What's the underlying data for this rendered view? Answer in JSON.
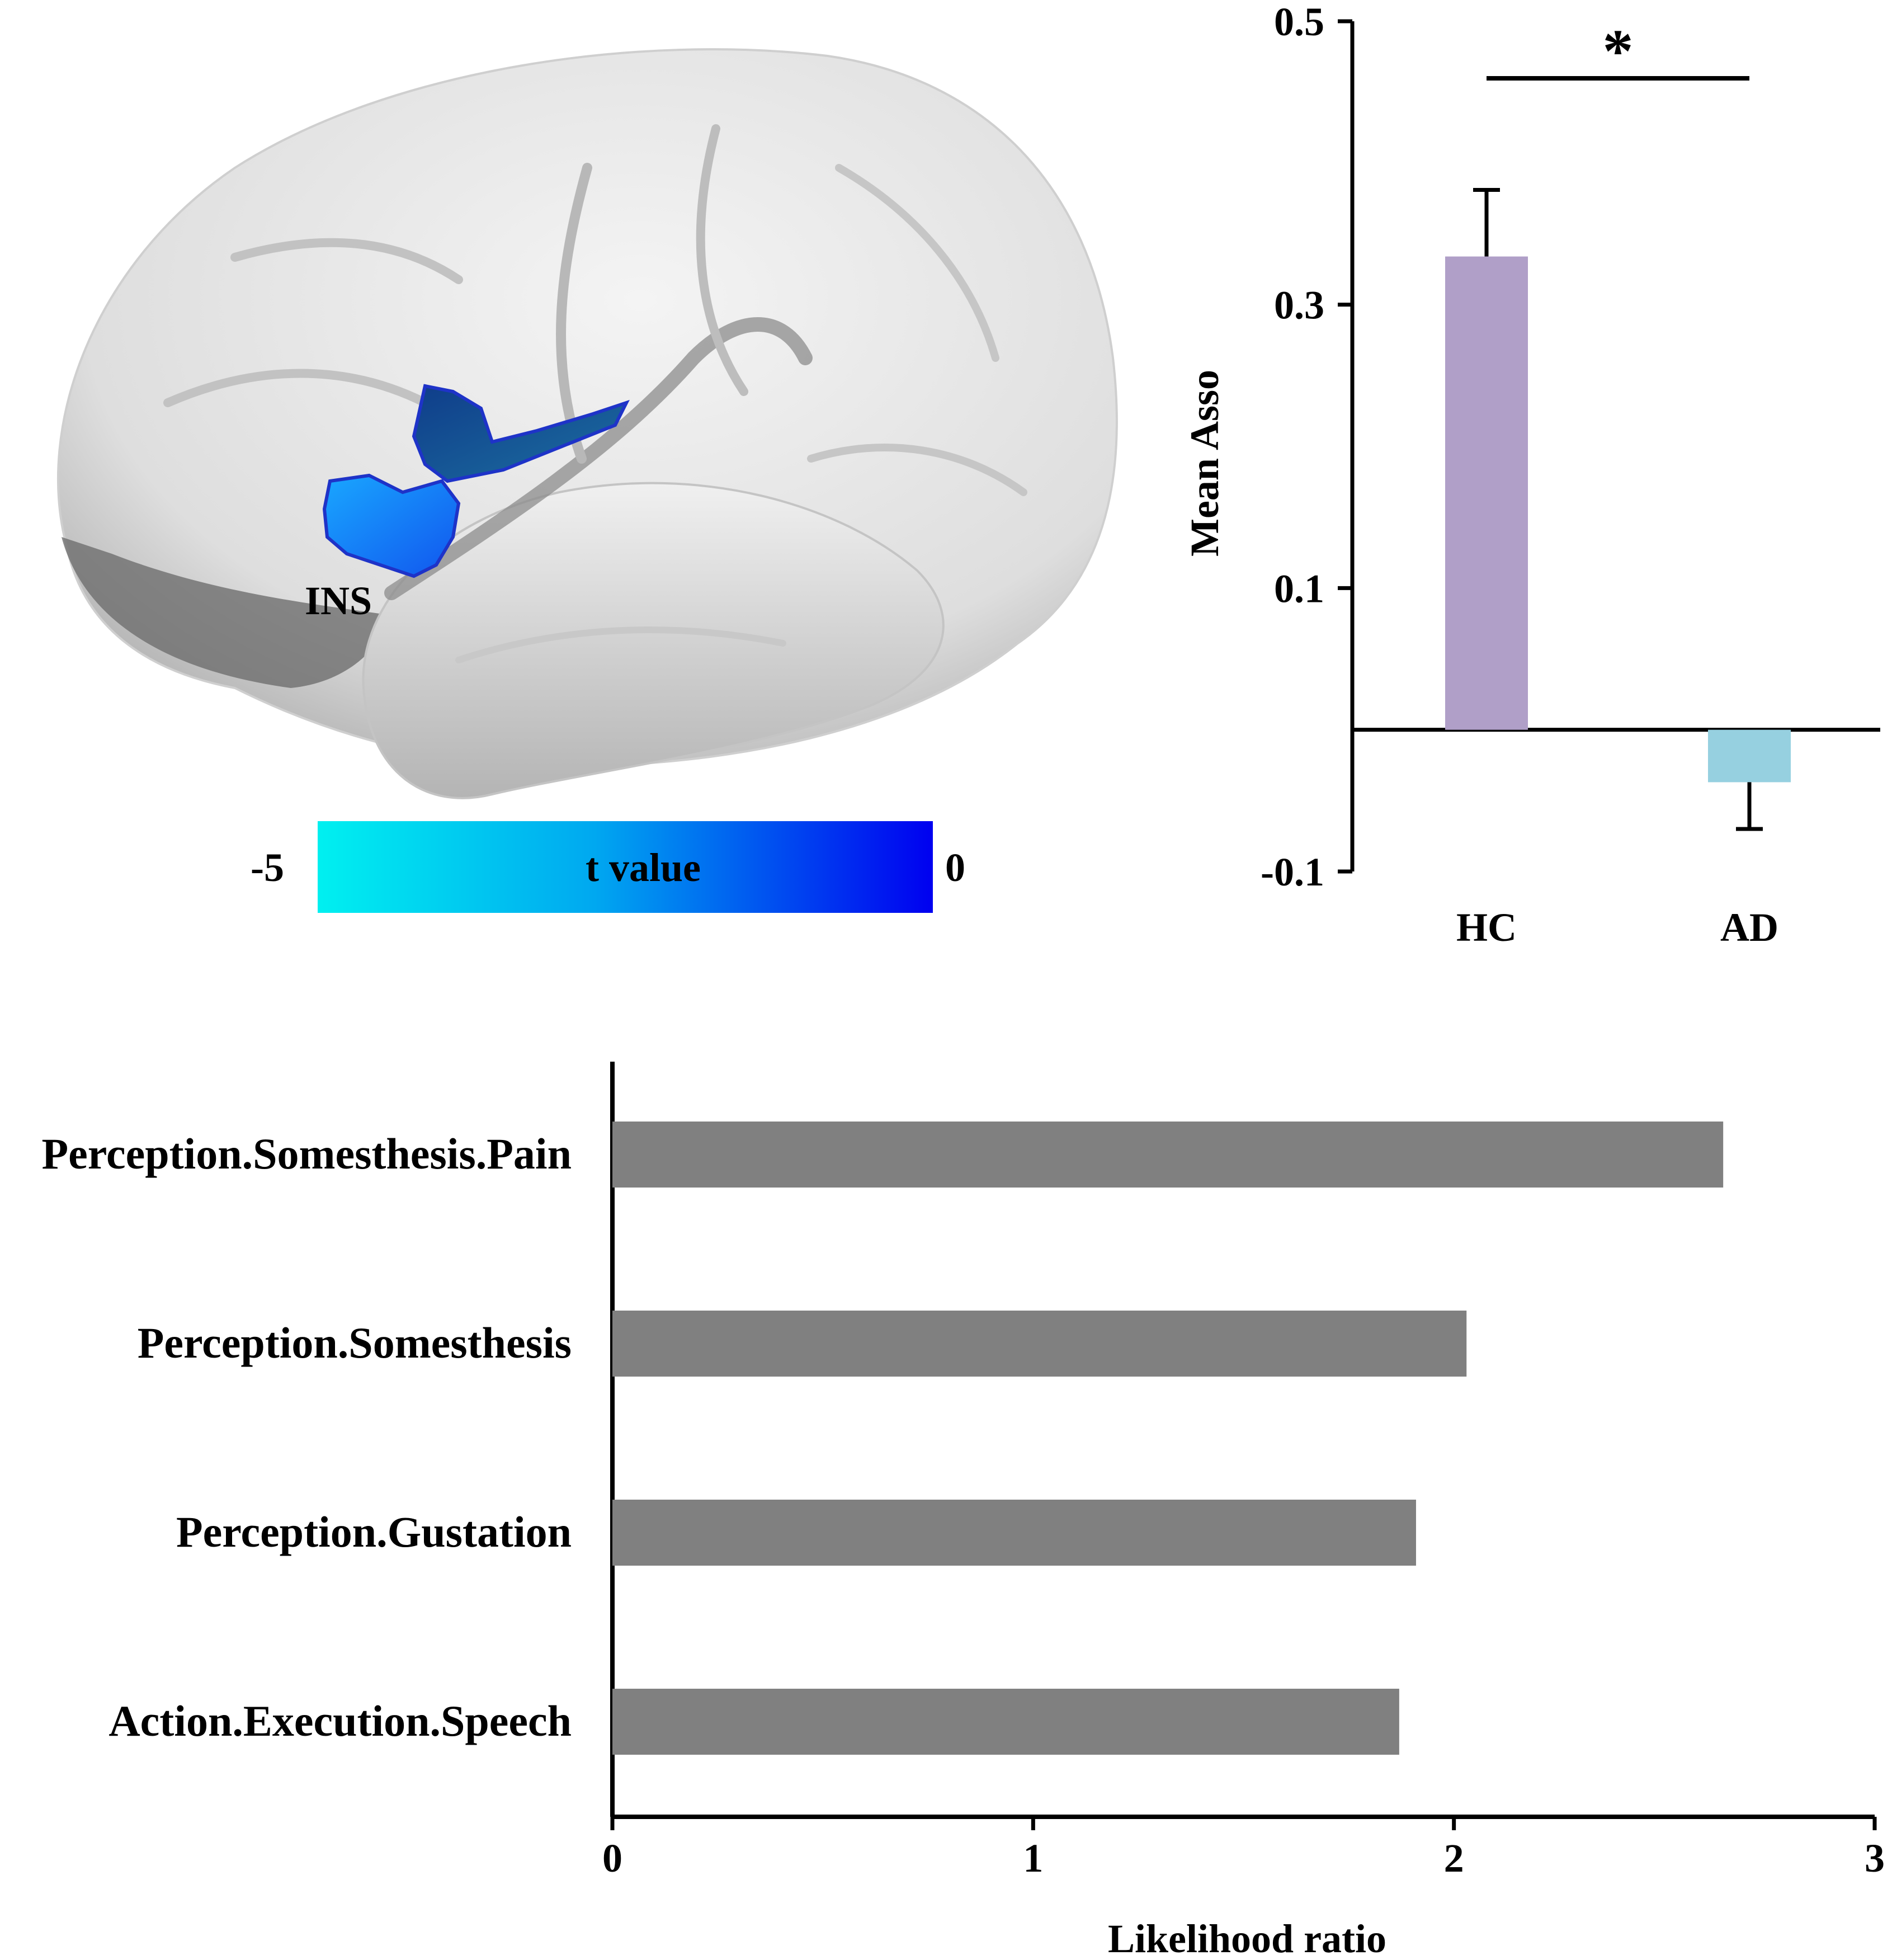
{
  "brain_panel": {
    "region_label": "INS",
    "colorbar": {
      "min_label": "-5",
      "max_label": "0",
      "title": "t value",
      "color_start": "#00f0f0",
      "color_mid": "#00a8f0",
      "color_end": "#0000f0"
    },
    "brain_color": "#e6e6e6",
    "cluster_color": "#1f6fff"
  },
  "chart_data": [
    {
      "type": "bar",
      "orientation": "vertical",
      "categories": [
        "HC",
        "AD"
      ],
      "values": [
        0.334,
        -0.037
      ],
      "errors": [
        0.047,
        0.033
      ],
      "colors": [
        "#b09fc8",
        "#96d0e0"
      ],
      "ylim": [
        -0.1,
        0.5
      ],
      "yticks": [
        "0.5",
        "0.3",
        "0.1",
        "-0.1"
      ],
      "ylabel": "Mean Asso",
      "xlabel": "",
      "title": "",
      "significance": {
        "marker": "*",
        "pair": [
          "HC",
          "AD"
        ]
      },
      "grid": false
    },
    {
      "type": "bar",
      "orientation": "horizontal",
      "categories": [
        "Perception.Somesthesis.Pain",
        "Perception.Somesthesis",
        "Perception.Gustation",
        "Action.Execution.Speech"
      ],
      "values": [
        2.64,
        2.03,
        1.91,
        1.87
      ],
      "color": "#808080",
      "xlim": [
        0,
        3
      ],
      "xticks": [
        "0",
        "1",
        "2",
        "3"
      ],
      "xlabel": "Likelihood ratio",
      "ylabel": "",
      "title": "",
      "grid": false
    }
  ]
}
